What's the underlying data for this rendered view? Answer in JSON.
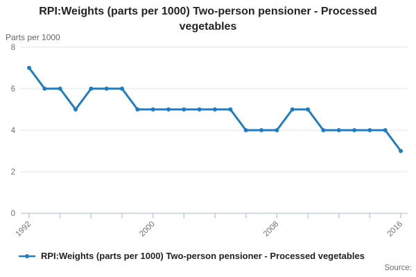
{
  "header": {
    "title": "RPI:Weights (parts per 1000) Two-person pensioner - Processed vegetables"
  },
  "source": {
    "label": "Source:"
  },
  "colors": {
    "line": "#1e7cc2",
    "grid": "#e5e5e5",
    "axis": "#b9c3de",
    "tick_text": "#707070"
  },
  "chart_data": {
    "type": "line",
    "title": "RPI:Weights (parts per 1000) Two-person pensioner - Processed vegetables",
    "ylabel": "Parts per 1000",
    "xlabel": "",
    "x": [
      1992,
      1993,
      1994,
      1995,
      1996,
      1997,
      1998,
      1999,
      2000,
      2001,
      2002,
      2003,
      2004,
      2005,
      2006,
      2007,
      2008,
      2009,
      2010,
      2011,
      2012,
      2013,
      2014,
      2015,
      2016
    ],
    "series": [
      {
        "name": "RPI:Weights (parts per 1000) Two-person pensioner - Processed vegetables",
        "values": [
          7,
          6,
          6,
          5,
          6,
          6,
          6,
          5,
          5,
          5,
          5,
          5,
          5,
          5,
          4,
          4,
          4,
          5,
          5,
          4,
          4,
          4,
          4,
          4,
          3
        ]
      }
    ],
    "ylim": [
      0,
      8
    ],
    "y_ticks": [
      0,
      2,
      4,
      6,
      8
    ],
    "x_tick_interval": 2,
    "x_labeled_ticks": [
      1992,
      2000,
      2008,
      2016
    ],
    "grid": true,
    "legend_position": "bottom"
  }
}
